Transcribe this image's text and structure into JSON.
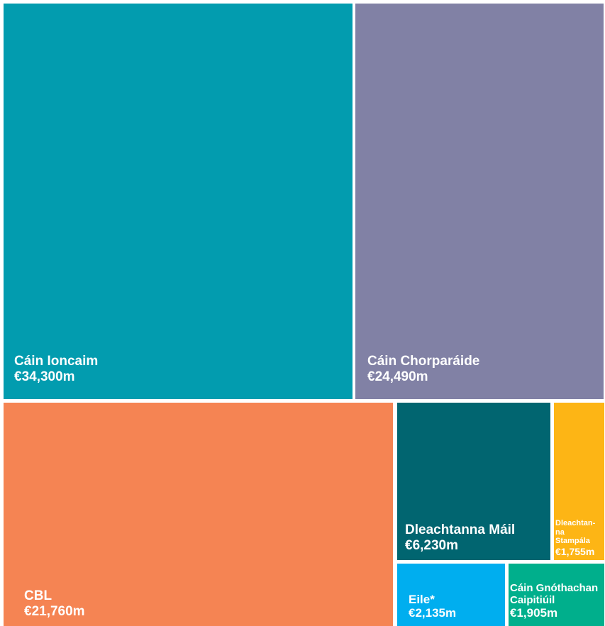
{
  "chart_data": {
    "type": "treemap",
    "unit": "€m",
    "items": [
      {
        "label": "Cáin Ioncaim",
        "value": 34300,
        "display_value": "€34,300m",
        "color": "#029CAF"
      },
      {
        "label": "Cáin Chorparáide",
        "value": 24490,
        "display_value": "€24,490m",
        "color": "#8181A5"
      },
      {
        "label": "CBL",
        "value": 21760,
        "display_value": "€21,760m",
        "color": "#F58453"
      },
      {
        "label": "Dleachtanna Máil",
        "value": 6230,
        "display_value": "€6,230m",
        "color": "#016570"
      },
      {
        "label": "Dleachtanna Stampála",
        "value": 1755,
        "display_value": "€1,755m",
        "color": "#FDB515"
      },
      {
        "label": "Eile*",
        "value": 2135,
        "display_value": "€2,135m",
        "color": "#00AEEF"
      },
      {
        "label": "Cáin Gnóthachan Caipitiúil",
        "value": 1905,
        "display_value": "€1,905m",
        "color": "#00AF8C"
      }
    ]
  }
}
